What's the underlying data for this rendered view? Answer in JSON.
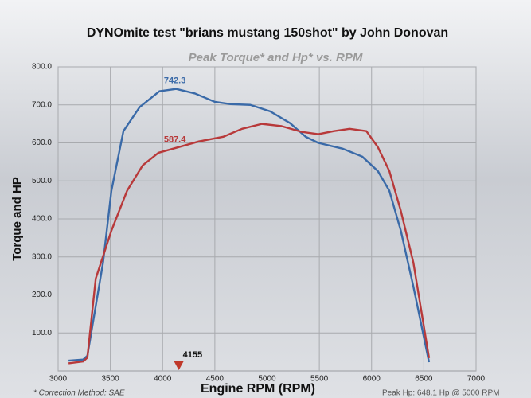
{
  "chart_data": {
    "type": "line",
    "title": "DYNOmite test \"brians mustang 150shot\" by John Donovan",
    "subtitle": "Peak Torque* and Hp* vs. RPM",
    "x_label": "Engine RPM (RPM)",
    "y_label": "Torque and HP",
    "xlim": [
      3000,
      7000
    ],
    "xticks": [
      3000,
      3500,
      4000,
      4500,
      5000,
      5500,
      6000,
      6500,
      7000
    ],
    "ylim": [
      0,
      800
    ],
    "yticks": [
      {
        "value": 100,
        "label": "100.0"
      },
      {
        "value": 200,
        "label": "200.0"
      },
      {
        "value": 300,
        "label": "300.0"
      },
      {
        "value": 400,
        "label": "400.0"
      },
      {
        "value": 500,
        "label": "500.0"
      },
      {
        "value": 600,
        "label": "600.0"
      },
      {
        "value": 700,
        "label": "700.0"
      },
      {
        "value": 800,
        "label": "800.0"
      }
    ],
    "grid": true,
    "series": [
      {
        "color": "#3a6aa8",
        "x": [
          3100,
          3240,
          3280,
          3430,
          3510,
          3625,
          3780,
          3970,
          4130,
          4310,
          4500,
          4650,
          4840,
          5030,
          5220,
          5370,
          5490,
          5720,
          5910,
          6060,
          6170,
          6280,
          6400,
          6550
        ],
        "values": [
          27,
          30,
          40,
          285,
          474,
          631,
          694,
          736,
          742,
          730,
          708,
          702,
          700,
          683,
          652,
          616,
          600,
          585,
          564,
          526,
          474,
          369,
          222,
          23
        ]
      },
      {
        "color": "#b8393a",
        "x": [
          3100,
          3240,
          3280,
          3360,
          3510,
          3660,
          3810,
          3960,
          4130,
          4350,
          4580,
          4760,
          4950,
          5140,
          5330,
          5490,
          5640,
          5790,
          5950,
          6060,
          6170,
          6280,
          6400,
          6550
        ],
        "values": [
          20,
          25,
          35,
          243,
          369,
          474,
          541,
          574,
          587,
          604,
          616,
          637,
          650,
          644,
          629,
          623,
          631,
          637,
          631,
          589,
          526,
          421,
          285,
          34
        ]
      }
    ],
    "marker_rpm": 4155,
    "value_notes": [
      742.3,
      587.4
    ],
    "footnote": "* Correction Method: SAE",
    "peak_note": "Peak Hp: 648.1 Hp @ 5000 RPM"
  }
}
